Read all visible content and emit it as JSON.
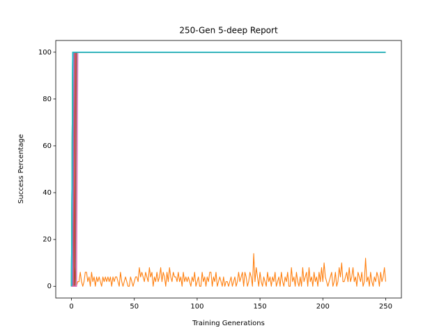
{
  "chart_data": {
    "type": "line",
    "title": "250-Gen 5-deep Report",
    "x_label": "Training Generations",
    "y_label": "Success Percentage",
    "xlim": [
      -12.5,
      262.5
    ],
    "ylim": [
      -5,
      105
    ],
    "xticks": [
      0,
      50,
      100,
      150,
      200,
      250
    ],
    "yticks": [
      0,
      20,
      40,
      60,
      80,
      100
    ],
    "series": [
      {
        "color": "#1f77b4",
        "x": [
          0,
          1,
          250
        ],
        "values": [
          0,
          100,
          100
        ]
      },
      {
        "color": "#ff7f0e",
        "x": [
          0,
          1,
          2,
          3,
          4,
          5,
          6,
          7,
          8,
          9,
          10,
          11,
          12,
          13,
          14,
          15,
          16,
          17,
          18,
          19,
          20,
          21,
          22,
          23,
          24,
          25,
          26,
          27,
          28,
          29,
          30,
          31,
          32,
          33,
          34,
          35,
          36,
          37,
          38,
          39,
          40,
          41,
          42,
          43,
          44,
          45,
          46,
          47,
          48,
          49,
          50,
          51,
          52,
          53,
          54,
          55,
          56,
          57,
          58,
          59,
          60,
          61,
          62,
          63,
          64,
          65,
          66,
          67,
          68,
          69,
          70,
          71,
          72,
          73,
          74,
          75,
          76,
          77,
          78,
          79,
          80,
          81,
          82,
          83,
          84,
          85,
          86,
          87,
          88,
          89,
          90,
          91,
          92,
          93,
          94,
          95,
          96,
          97,
          98,
          99,
          100,
          101,
          102,
          103,
          104,
          105,
          106,
          107,
          108,
          109,
          110,
          111,
          112,
          113,
          114,
          115,
          116,
          117,
          118,
          119,
          120,
          121,
          122,
          123,
          124,
          125,
          126,
          127,
          128,
          129,
          130,
          131,
          132,
          133,
          134,
          135,
          136,
          137,
          138,
          139,
          140,
          141,
          142,
          143,
          144,
          145,
          146,
          147,
          148,
          149,
          150,
          151,
          152,
          153,
          154,
          155,
          156,
          157,
          158,
          159,
          160,
          161,
          162,
          163,
          164,
          165,
          166,
          167,
          168,
          169,
          170,
          171,
          172,
          173,
          174,
          175,
          176,
          177,
          178,
          179,
          180,
          181,
          182,
          183,
          184,
          185,
          186,
          187,
          188,
          189,
          190,
          191,
          192,
          193,
          194,
          195,
          196,
          197,
          198,
          199,
          200,
          201,
          202,
          203,
          204,
          205,
          206,
          207,
          208,
          209,
          210,
          211,
          212,
          213,
          214,
          215,
          216,
          217,
          218,
          219,
          220,
          221,
          222,
          223,
          224,
          225,
          226,
          227,
          228,
          229,
          230,
          231,
          232,
          233,
          234,
          235,
          236,
          237,
          238,
          239,
          240,
          241,
          242,
          243,
          244,
          245,
          246,
          247,
          248,
          249,
          250
        ],
        "values": [
          0,
          100,
          0,
          8,
          0,
          2,
          2,
          6,
          2,
          0,
          2,
          6,
          6,
          2,
          4,
          0,
          6,
          2,
          4,
          0,
          4,
          2,
          4,
          2,
          0,
          4,
          2,
          4,
          2,
          4,
          2,
          4,
          0,
          4,
          2,
          4,
          4,
          2,
          0,
          6,
          2,
          0,
          2,
          4,
          2,
          0,
          0,
          4,
          2,
          0,
          2,
          4,
          4,
          2,
          8,
          4,
          6,
          4,
          2,
          6,
          4,
          2,
          8,
          4,
          6,
          0,
          4,
          2,
          6,
          2,
          4,
          8,
          2,
          6,
          4,
          0,
          6,
          2,
          8,
          4,
          2,
          6,
          4,
          4,
          2,
          6,
          2,
          4,
          0,
          6,
          2,
          4,
          2,
          4,
          2,
          0,
          4,
          2,
          6,
          0,
          2,
          4,
          0,
          0,
          6,
          2,
          4,
          0,
          4,
          2,
          6,
          6,
          0,
          4,
          2,
          6,
          0,
          2,
          4,
          2,
          0,
          4,
          0,
          2,
          2,
          0,
          2,
          4,
          0,
          2,
          4,
          0,
          2,
          6,
          2,
          4,
          6,
          0,
          6,
          4,
          0,
          2,
          6,
          4,
          0,
          14,
          2,
          8,
          4,
          0,
          6,
          2,
          0,
          4,
          2,
          0,
          6,
          2,
          4,
          0,
          4,
          2,
          6,
          0,
          2,
          4,
          0,
          6,
          2,
          0,
          4,
          2,
          6,
          0,
          0,
          8,
          2,
          4,
          0,
          6,
          2,
          0,
          4,
          0,
          8,
          2,
          4,
          6,
          0,
          8,
          2,
          4,
          0,
          6,
          2,
          4,
          0,
          6,
          2,
          8,
          2,
          10,
          4,
          2,
          0,
          2,
          4,
          6,
          0,
          2,
          6,
          0,
          2,
          8,
          4,
          10,
          2,
          2,
          4,
          6,
          2,
          8,
          2,
          4,
          8,
          2,
          4,
          0,
          6,
          4,
          2,
          6,
          0,
          2,
          12,
          2,
          4,
          0,
          6,
          2,
          0,
          4,
          2,
          6,
          4,
          0,
          6,
          2,
          4,
          8,
          2
        ]
      },
      {
        "color": "#2ca02c",
        "x": [
          0,
          1,
          250
        ],
        "values": [
          0,
          100,
          100
        ]
      },
      {
        "color": "#d62728",
        "x": [
          0,
          2,
          3,
          250
        ],
        "values": [
          0,
          0,
          100,
          100
        ]
      },
      {
        "color": "#9467bd",
        "x": [
          0,
          1,
          2,
          250
        ],
        "values": [
          0,
          0,
          100,
          100
        ]
      },
      {
        "color": "#8c564b",
        "x": [
          0,
          3,
          4,
          250
        ],
        "values": [
          0,
          0,
          100,
          100
        ]
      },
      {
        "color": "#e377c2",
        "x": [
          0,
          4,
          5,
          250
        ],
        "values": [
          0,
          0,
          100,
          100
        ]
      },
      {
        "color": "#7f7f7f",
        "x": [
          0,
          1,
          250
        ],
        "values": [
          0,
          100,
          100
        ]
      },
      {
        "color": "#bcbd22",
        "x": [
          0,
          1,
          250
        ],
        "values": [
          0,
          100,
          100
        ]
      },
      {
        "color": "#17becf",
        "x": [
          0,
          1,
          250
        ],
        "values": [
          0,
          100,
          100
        ]
      }
    ]
  }
}
